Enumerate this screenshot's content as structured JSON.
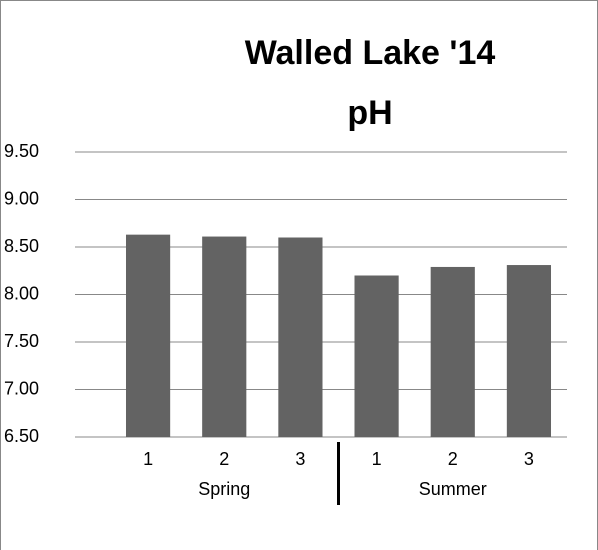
{
  "chart_data": {
    "type": "bar",
    "title": "Walled Lake '14",
    "subtitle": "pH",
    "categories": [
      "1",
      "2",
      "3",
      "1",
      "2",
      "3"
    ],
    "groups": [
      "Spring",
      "Summer"
    ],
    "values": [
      8.63,
      8.61,
      8.6,
      8.2,
      8.29,
      8.31
    ],
    "color": "#636363",
    "ylim": [
      6.5,
      9.5
    ],
    "yticks": [
      {
        "value": 6.5,
        "label": "6.50"
      },
      {
        "value": 7,
        "label": "7.00"
      },
      {
        "value": 7.5,
        "label": "7.50"
      },
      {
        "value": 8,
        "label": "8.00"
      },
      {
        "value": 8.5,
        "label": "8.50"
      },
      {
        "value": 9,
        "label": "9.00"
      },
      {
        "value": 9.5,
        "label": "9.50"
      }
    ],
    "grid": true
  }
}
